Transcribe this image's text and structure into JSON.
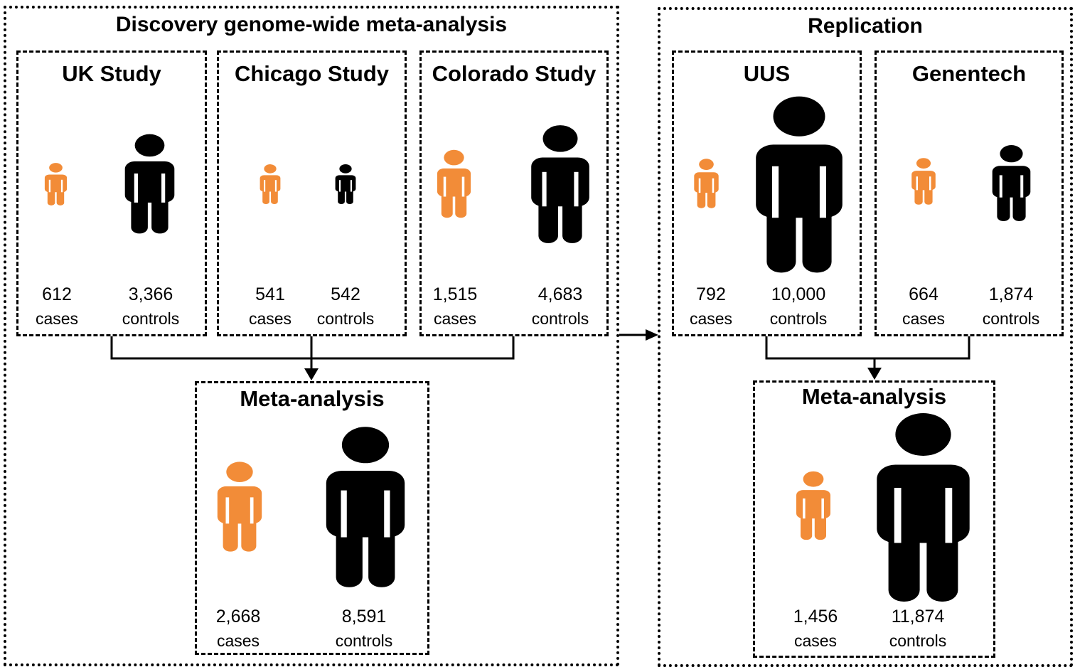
{
  "sections": {
    "discovery_title": "Discovery genome-wide meta-analysis",
    "replication_title": "Replication"
  },
  "studies": [
    {
      "title": "UK Study",
      "cases": "612",
      "controls": "3,366"
    },
    {
      "title": "Chicago Study",
      "cases": "541",
      "controls": "542"
    },
    {
      "title": "Colorado Study",
      "cases": "1,515",
      "controls": "4,683"
    },
    {
      "title": "UUS",
      "cases": "792",
      "controls": "10,000"
    },
    {
      "title": "Genentech",
      "cases": "664",
      "controls": "1,874"
    }
  ],
  "meta_discovery": {
    "title": "Meta-analysis",
    "cases": "2,668",
    "controls": "8,591"
  },
  "meta_replication": {
    "title": "Meta-analysis",
    "cases": "1,456",
    "controls": "11,874"
  },
  "labels": {
    "cases": "cases",
    "controls": "controls"
  },
  "icons": {
    "case_icon": "person-icon",
    "control_icon": "person-icon"
  },
  "colors": {
    "case": "#F28C38",
    "control": "#000000"
  }
}
